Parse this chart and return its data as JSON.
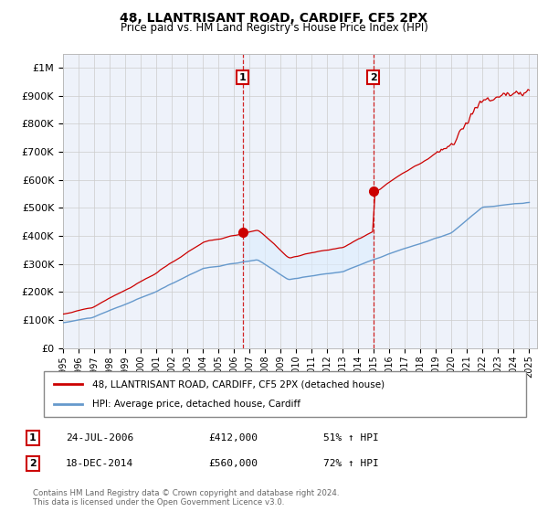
{
  "title": "48, LLANTRISANT ROAD, CARDIFF, CF5 2PX",
  "subtitle": "Price paid vs. HM Land Registry's House Price Index (HPI)",
  "legend_line1": "48, LLANTRISANT ROAD, CARDIFF, CF5 2PX (detached house)",
  "legend_line2": "HPI: Average price, detached house, Cardiff",
  "sale1_date": "24-JUL-2006",
  "sale1_price": 412000,
  "sale1_pct": "51% ↑ HPI",
  "sale2_date": "18-DEC-2014",
  "sale2_price": 560000,
  "sale2_pct": "72% ↑ HPI",
  "footer": "Contains HM Land Registry data © Crown copyright and database right 2024.\nThis data is licensed under the Open Government Licence v3.0.",
  "red_color": "#cc0000",
  "blue_color": "#6699cc",
  "fill_color": "#ddeeff",
  "background_plot": "#eef2fa",
  "ylim": [
    0,
    1050000
  ],
  "xlim_start": 1995.0,
  "xlim_end": 2025.5,
  "sale1_year": 2006.56,
  "sale2_year": 2014.96
}
